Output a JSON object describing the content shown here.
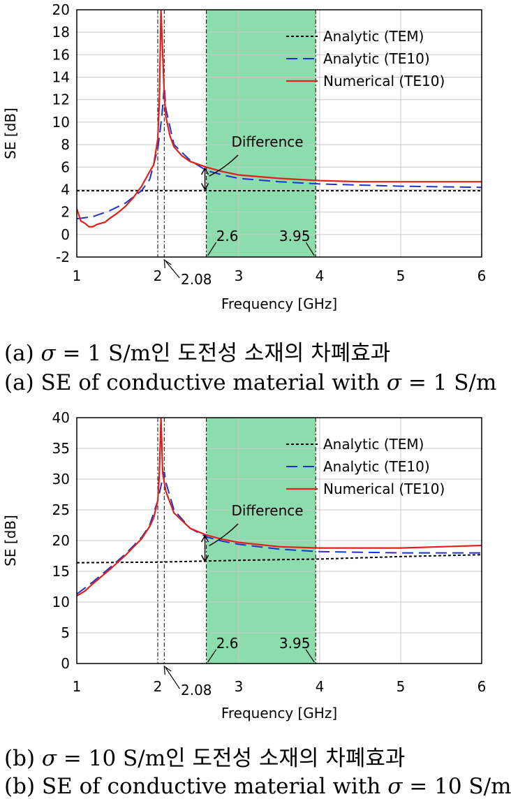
{
  "chart_data": [
    {
      "type": "line",
      "panel": "a",
      "xlabel": "Frequency [GHz]",
      "ylabel": "SE [dB]",
      "xlim": [
        1,
        6
      ],
      "ylim": [
        -2,
        20
      ],
      "xticks": [
        1,
        2,
        3,
        4,
        5,
        6
      ],
      "yticks": [
        -2,
        0,
        2,
        4,
        6,
        8,
        10,
        12,
        14,
        16,
        18,
        20
      ],
      "grid": true,
      "legend_position": "top-right",
      "vlines": [
        2.0,
        2.08,
        2.6,
        3.95
      ],
      "shaded_region": {
        "x": [
          2.6,
          3.95
        ],
        "color": "#8ddcad"
      },
      "annotations": [
        {
          "text": "2.08",
          "x": 2.08
        },
        {
          "text": "2.6",
          "x": 2.6
        },
        {
          "text": "3.95",
          "x": 3.95
        },
        {
          "text": "Difference",
          "x": 2.6,
          "y_range": [
            4.0,
            5.9
          ]
        }
      ],
      "series": [
        {
          "name": "Analytic (TEM)",
          "color": "#000000",
          "style": "short-dash",
          "x": [
            1,
            2,
            3,
            4,
            5,
            6
          ],
          "y": [
            3.9,
            3.9,
            3.9,
            3.9,
            3.9,
            3.9
          ]
        },
        {
          "name": "Analytic (TE10)",
          "color": "#1f33cc",
          "style": "long-dash",
          "x": [
            1,
            1.2,
            1.4,
            1.6,
            1.8,
            1.9,
            2.0,
            2.05,
            2.08,
            2.1,
            2.2,
            2.4,
            2.6,
            2.8,
            3.0,
            3.5,
            4.0,
            4.5,
            5.0,
            6.0
          ],
          "y": [
            1.4,
            1.6,
            2.1,
            2.8,
            3.9,
            4.9,
            7.6,
            10.5,
            13.2,
            11.2,
            8.0,
            6.6,
            5.7,
            5.3,
            5.0,
            4.7,
            4.5,
            4.4,
            4.3,
            4.2
          ]
        },
        {
          "name": "Numerical (TE10)",
          "color": "#e0201a",
          "style": "solid",
          "x": [
            1,
            1.05,
            1.1,
            1.15,
            1.2,
            1.25,
            1.3,
            1.35,
            1.4,
            1.5,
            1.6,
            1.7,
            1.8,
            1.9,
            1.95,
            2.0,
            2.02,
            2.04,
            2.08,
            2.1,
            2.15,
            2.2,
            2.3,
            2.4,
            2.6,
            2.8,
            3.0,
            3.5,
            4.0,
            4.5,
            5.0,
            6.0
          ],
          "y": [
            2.3,
            1.2,
            1.0,
            0.7,
            0.7,
            0.9,
            1.0,
            1.1,
            1.4,
            1.9,
            2.5,
            3.3,
            4.3,
            5.6,
            6.2,
            8.5,
            12.0,
            20.0,
            12.5,
            10.5,
            8.8,
            7.8,
            7.0,
            6.5,
            6.0,
            5.6,
            5.3,
            5.0,
            4.8,
            4.7,
            4.7,
            4.7
          ]
        }
      ]
    },
    {
      "type": "line",
      "panel": "b",
      "xlabel": "Frequency [GHz]",
      "ylabel": "SE [dB]",
      "xlim": [
        1,
        6
      ],
      "ylim": [
        0,
        40
      ],
      "xticks": [
        1,
        2,
        3,
        4,
        5,
        6
      ],
      "yticks": [
        0,
        5,
        10,
        15,
        20,
        25,
        30,
        35,
        40
      ],
      "grid": true,
      "legend_position": "top-right",
      "vlines": [
        2.0,
        2.08,
        2.6,
        3.95
      ],
      "shaded_region": {
        "x": [
          2.6,
          3.95
        ],
        "color": "#8ddcad"
      },
      "annotations": [
        {
          "text": "2.08",
          "x": 2.08
        },
        {
          "text": "2.6",
          "x": 2.6
        },
        {
          "text": "3.95",
          "x": 3.95
        },
        {
          "text": "Difference",
          "x": 2.6,
          "y_range": [
            16.6,
            20.8
          ]
        }
      ],
      "series": [
        {
          "name": "Analytic (TEM)",
          "color": "#000000",
          "style": "short-dash",
          "x": [
            1,
            2,
            3,
            4,
            5,
            6
          ],
          "y": [
            16.4,
            16.5,
            16.8,
            17.0,
            17.4,
            17.7
          ]
        },
        {
          "name": "Analytic (TE10)",
          "color": "#1f33cc",
          "style": "long-dash",
          "x": [
            1,
            1.2,
            1.4,
            1.6,
            1.8,
            1.9,
            2.0,
            2.05,
            2.08,
            2.1,
            2.2,
            2.4,
            2.6,
            2.8,
            3.0,
            3.5,
            4.0,
            5.0,
            6.0
          ],
          "y": [
            11.3,
            13.3,
            15.5,
            17.8,
            20.5,
            22.5,
            26.5,
            29.5,
            31.2,
            29.5,
            25.0,
            22.0,
            20.6,
            19.9,
            19.4,
            18.6,
            18.2,
            18.0,
            18.0
          ]
        },
        {
          "name": "Numerical (TE10)",
          "color": "#e0201a",
          "style": "solid",
          "x": [
            1,
            1.1,
            1.2,
            1.4,
            1.6,
            1.8,
            1.9,
            1.95,
            2.0,
            2.02,
            2.04,
            2.06,
            2.1,
            2.2,
            2.4,
            2.6,
            2.8,
            3.0,
            3.5,
            4.0,
            5.0,
            6.0
          ],
          "y": [
            11.0,
            11.8,
            13.0,
            15.2,
            17.6,
            20.3,
            22.3,
            23.7,
            26.5,
            31.0,
            40.0,
            31.0,
            28.0,
            24.5,
            22.0,
            20.9,
            20.2,
            19.7,
            19.0,
            18.8,
            18.8,
            19.2
          ]
        }
      ]
    }
  ],
  "captions": {
    "a_korean_prefix": "(a) ",
    "a_korean_sigma": "σ",
    "a_korean_rest": " = 1 S/m인 도전성 소재의 차폐효과",
    "a_english_prefix": "(a) SE of conductive material with ",
    "a_english_sigma": "σ",
    "a_english_rest": " = 1 S/m",
    "b_korean_prefix": "(b) ",
    "b_korean_sigma": "σ",
    "b_korean_rest": " = 10 S/m인 도전성 소재의 차폐효과",
    "b_english_prefix": "(b) SE of conductive material with ",
    "b_english_sigma": "σ",
    "b_english_rest": " = 10 S/m"
  }
}
